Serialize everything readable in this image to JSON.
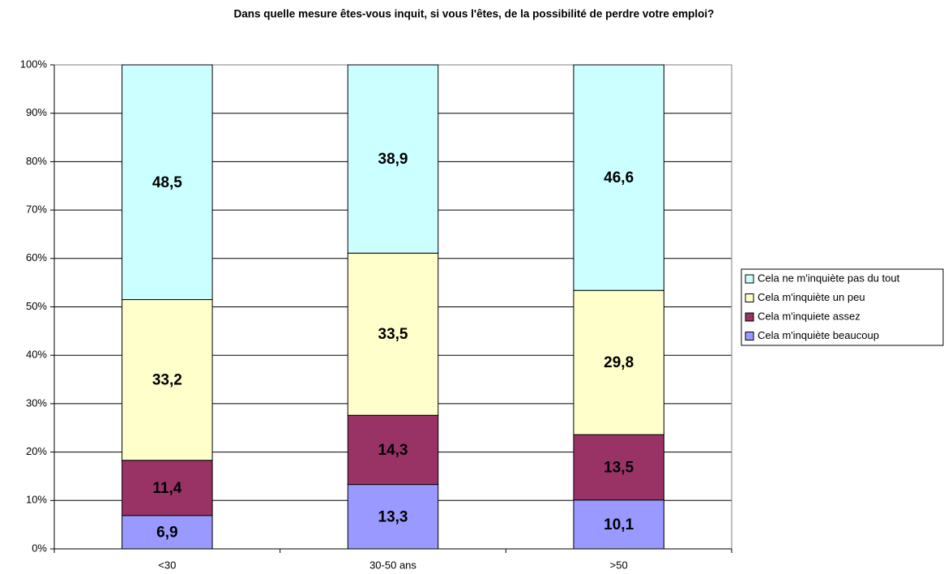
{
  "chart_data": {
    "type": "stacked_bar",
    "title": "Dans quelle mesure êtes-vous inquit, si vous l'êtes, de la possibilité de perdre votre emploi?",
    "categories": [
      "<30",
      "30-50 ans",
      ">50"
    ],
    "series": [
      {
        "name": "Cela m'inquiète beaucoup",
        "color": "#9999ff",
        "values": [
          6.9,
          13.3,
          10.1
        ],
        "value_labels": [
          "6,9",
          "13,3",
          "10,1"
        ]
      },
      {
        "name": "Cela m'inquiete assez",
        "color": "#993366",
        "values": [
          11.4,
          14.3,
          13.5
        ],
        "value_labels": [
          "11,4",
          "14,3",
          "13,5"
        ]
      },
      {
        "name": "Cela m'inquiète un peu",
        "color": "#ffffcc",
        "values": [
          33.2,
          33.5,
          29.8
        ],
        "value_labels": [
          "33,2",
          "33,5",
          "29,8"
        ]
      },
      {
        "name": "Cela ne m'inquiète pas du tout",
        "color": "#ccffff",
        "values": [
          48.5,
          38.9,
          46.6
        ],
        "value_labels": [
          "48,5",
          "38,9",
          "46,6"
        ]
      }
    ],
    "ylim": [
      0,
      100
    ],
    "yticks": [
      {
        "value": 0,
        "label": "0%"
      },
      {
        "value": 10,
        "label": "10%"
      },
      {
        "value": 20,
        "label": "20%"
      },
      {
        "value": 30,
        "label": "30%"
      },
      {
        "value": 40,
        "label": "40%"
      },
      {
        "value": 50,
        "label": "50%"
      },
      {
        "value": 60,
        "label": "60%"
      },
      {
        "value": 70,
        "label": "70%"
      },
      {
        "value": 80,
        "label": "80%"
      },
      {
        "value": 90,
        "label": "90%"
      },
      {
        "value": 100,
        "label": "100%"
      }
    ],
    "grid": true,
    "legend": "right"
  }
}
